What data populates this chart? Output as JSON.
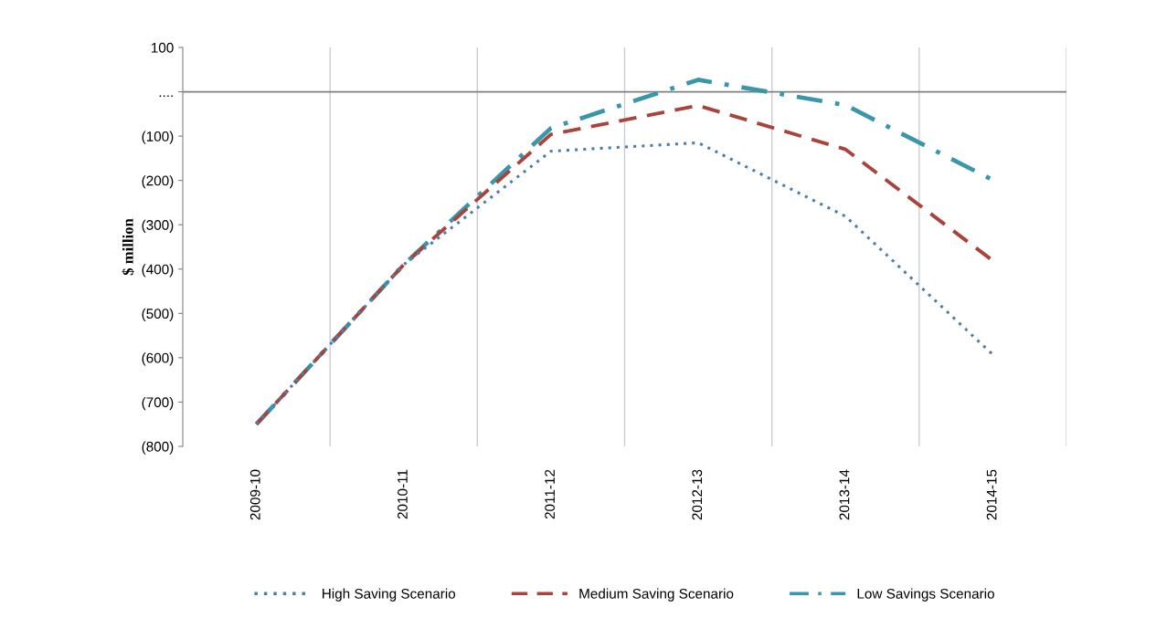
{
  "chart_data": {
    "type": "line",
    "ylabel": "$ million",
    "categories": [
      "2009-10",
      "2010-11",
      "2011-12",
      "2012-13",
      "2013-14",
      "2014-15"
    ],
    "series": [
      {
        "name": "High Saving Scenario",
        "color": "#4a7fa8",
        "line_style": "dotted",
        "values": [
          -750,
          -390,
          -134,
          -115,
          -281,
          -593
        ]
      },
      {
        "name": "Medium Saving Scenario",
        "color": "#a8443c",
        "line_style": "dashed",
        "values": [
          -750,
          -390,
          -96,
          -31,
          -130,
          -381
        ]
      },
      {
        "name": "Low Savings Scenario",
        "color": "#3a97aa",
        "line_style": "dashdot",
        "values": [
          -750,
          -390,
          -82,
          27,
          -30,
          -199
        ]
      }
    ],
    "ylim": [
      -800,
      100
    ],
    "yticks": [
      100,
      {
        "value": 0,
        "label": "...."
      },
      {
        "value": -100,
        "label": "(100)"
      },
      {
        "value": -200,
        "label": "(200)"
      },
      {
        "value": -300,
        "label": "(300)"
      },
      {
        "value": -400,
        "label": "(400)"
      },
      {
        "value": -500,
        "label": "(500)"
      },
      {
        "value": -600,
        "label": "(600)"
      },
      {
        "value": -700,
        "label": "(700)"
      },
      {
        "value": -800,
        "label": "(800)"
      }
    ],
    "ref_lines": [
      {
        "axis": "y",
        "value": 0,
        "color": "#808080"
      }
    ],
    "grid": "x",
    "legend": "bottom",
    "marker": "none"
  }
}
